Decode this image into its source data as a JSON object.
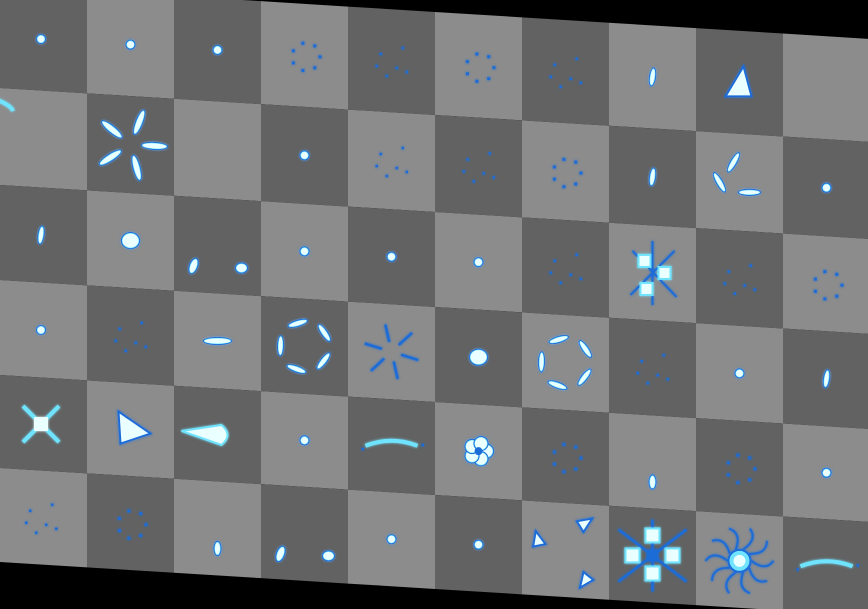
{
  "view": {
    "background": "#000000",
    "cell_colors": {
      "light": "#8c8c8c",
      "dark": "#626262"
    },
    "sprite_colors": {
      "fill": "#eaffff",
      "glow": "#6fe4ff",
      "edge": "#1f6cd8"
    }
  },
  "sheet": {
    "rows": 6,
    "cols": 10,
    "sprites": [
      [
        "dot",
        "dot",
        "dot",
        "ring-dots",
        "scatter",
        "ring-dots",
        "scatter",
        "dash",
        "fin",
        "none"
      ],
      [
        "curve-edge",
        "burst-5",
        "none",
        "dot",
        "scatter",
        "scatter",
        "ring-dots",
        "dash",
        "burst-3",
        "dot"
      ],
      [
        "dash",
        "blob",
        "drops-2",
        "dot",
        "dot",
        "dot",
        "scatter",
        "burst-4",
        "scatter",
        "ring-dots"
      ],
      [
        "dot",
        "scatter",
        "streak",
        "ring-arcs",
        "spark-burst",
        "blob",
        "ring-arcs",
        "scatter",
        "dot",
        "dash"
      ],
      [
        "cross",
        "arrowhead",
        "comet",
        "dot",
        "wisp",
        "flower",
        "ring-dots",
        "drop",
        "ring-dots",
        "dot"
      ],
      [
        "scatter",
        "ring-dots",
        "drop",
        "drops-2",
        "dot",
        "dot",
        "pinwheel",
        "star-burst",
        "swirl-flower",
        "wisp"
      ]
    ]
  }
}
